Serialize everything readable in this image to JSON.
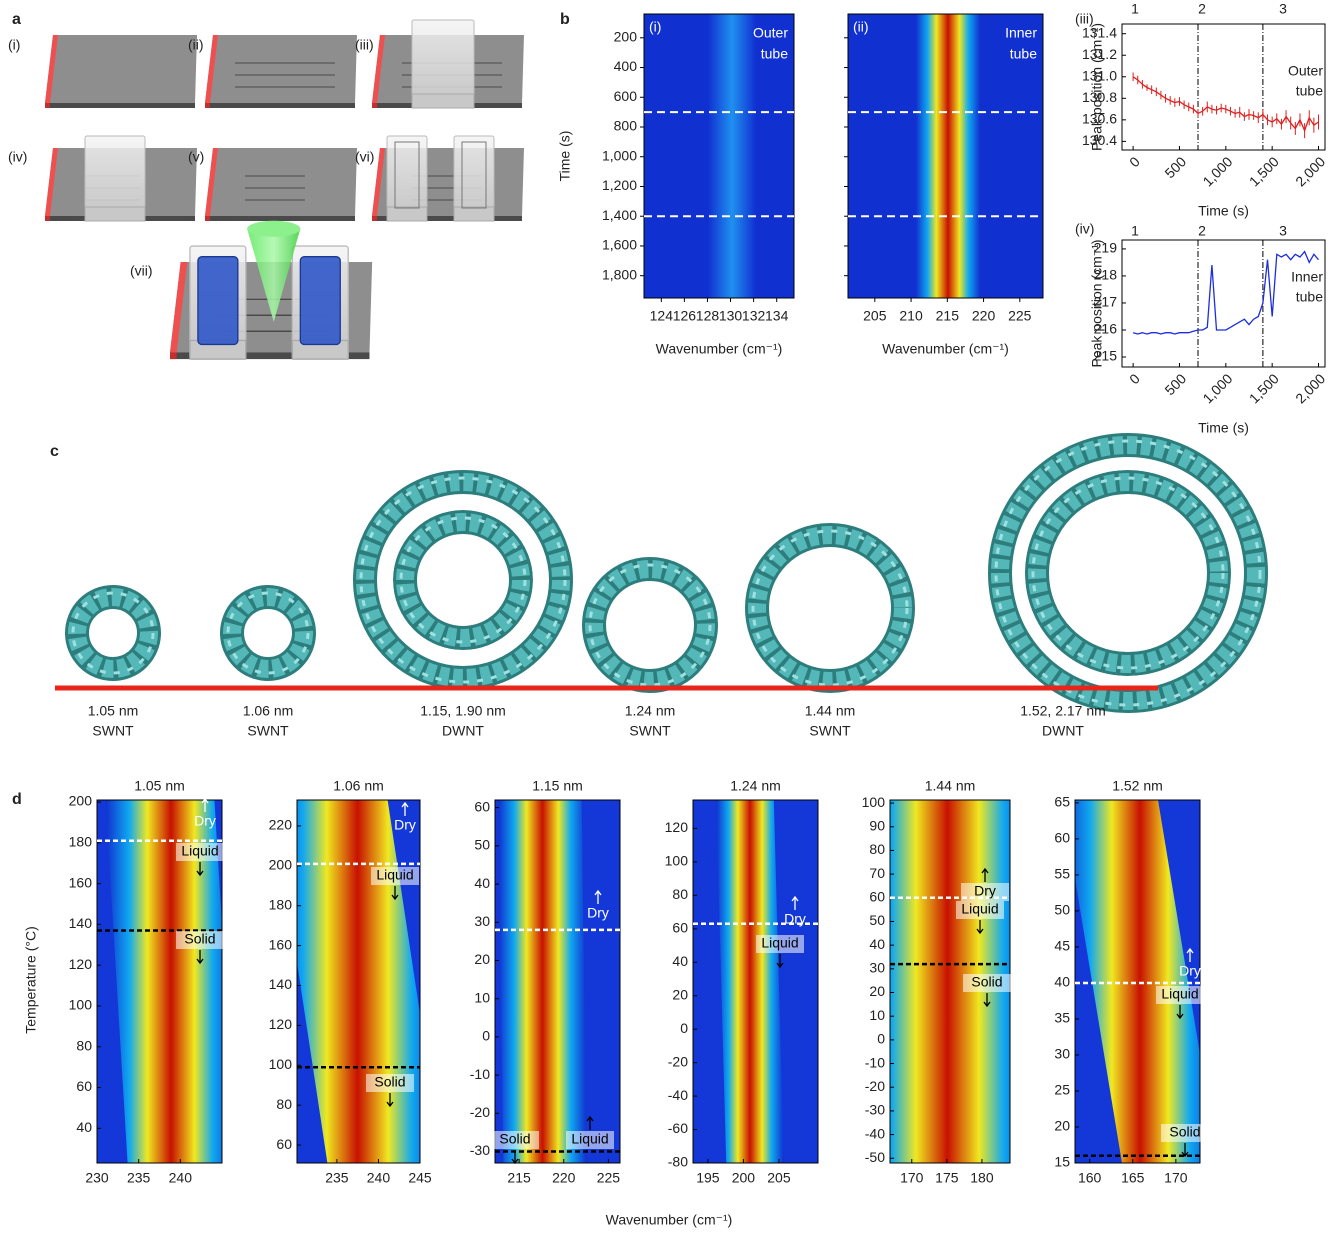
{
  "panel_labels": [
    "a",
    "b",
    "c",
    "d"
  ],
  "panel_a": {
    "steps": [
      "(i)",
      "(ii)",
      "(iii)",
      "(iv)",
      "(v)",
      "(vi)",
      "(vii)"
    ]
  },
  "panel_b": {
    "ylabel": "Time (s)",
    "ylim": [
      40,
      1950
    ],
    "y_inverted": true,
    "yticks": [
      200,
      400,
      600,
      800,
      {
        "value": 1000,
        "label": "1,000"
      },
      {
        "value": 1200,
        "label": "1,200"
      },
      {
        "value": 1400,
        "label": "1,400"
      },
      {
        "value": 1600,
        "label": "1,600"
      },
      {
        "value": 1800,
        "label": "1,800"
      }
    ],
    "transitions": [
      700,
      1400
    ],
    "maps": [
      {
        "label": "(i)",
        "annotation": [
          "Outer",
          "tube"
        ],
        "xlabel": "Wavenumber (cm⁻¹)",
        "xlim": [
          122.5,
          135.5
        ],
        "xticks": [
          124,
          126,
          128,
          130,
          132,
          134
        ]
      },
      {
        "label": "(ii)",
        "annotation": [
          "Inner",
          "tube"
        ],
        "xlabel": "Wavenumber (cm⁻¹)",
        "xlim": [
          201.3,
          228.2
        ],
        "xticks": [
          205,
          210,
          215,
          220,
          225
        ]
      }
    ],
    "lines": [
      {
        "type": "line",
        "label": "(iii)",
        "annotation": [
          "Outer",
          "tube"
        ],
        "color": "#e0201c",
        "xlabel": "Time (s)",
        "ylabel": "Peak position (cm⁻¹)",
        "xlim": [
          -120,
          2070
        ],
        "xticks": [
          0,
          500,
          {
            "value": 1000,
            "label": "1,000"
          },
          {
            "value": 1500,
            "label": "1,500"
          },
          {
            "value": 2000,
            "label": "2,000"
          }
        ],
        "ylim": [
          130.32,
          131.49
        ],
        "yticks": [
          130.4,
          130.6,
          130.8,
          {
            "value": 131,
            "label": "131.0"
          },
          131.2,
          131.4
        ],
        "transitions": [
          700,
          1400
        ],
        "phase_labels": [
          "1",
          "2",
          "3"
        ],
        "x": [
          0,
          50,
          100,
          150,
          200,
          250,
          300,
          350,
          400,
          450,
          500,
          550,
          600,
          650,
          700,
          750,
          800,
          850,
          900,
          950,
          1000,
          1050,
          1100,
          1150,
          1200,
          1250,
          1300,
          1350,
          1400,
          1450,
          1500,
          1550,
          1600,
          1650,
          1700,
          1750,
          1800,
          1850,
          1900,
          1950,
          2000
        ],
        "values": [
          131.0,
          130.97,
          130.93,
          130.9,
          130.88,
          130.86,
          130.83,
          130.8,
          130.78,
          130.76,
          130.77,
          130.74,
          130.72,
          130.7,
          130.66,
          130.68,
          130.72,
          130.7,
          130.69,
          130.71,
          130.7,
          130.68,
          130.66,
          130.67,
          130.63,
          130.65,
          130.64,
          130.62,
          130.65,
          130.6,
          130.58,
          130.61,
          130.56,
          130.63,
          130.57,
          130.52,
          130.6,
          130.5,
          130.62,
          130.55,
          130.58
        ],
        "errors": [
          0.04,
          0.04,
          0.04,
          0.03,
          0.04,
          0.04,
          0.04,
          0.04,
          0.04,
          0.04,
          0.04,
          0.04,
          0.04,
          0.04,
          0.04,
          0.04,
          0.05,
          0.04,
          0.04,
          0.04,
          0.04,
          0.04,
          0.04,
          0.05,
          0.04,
          0.05,
          0.04,
          0.05,
          0.05,
          0.05,
          0.05,
          0.05,
          0.05,
          0.06,
          0.06,
          0.06,
          0.06,
          0.07,
          0.07,
          0.07,
          0.07
        ]
      },
      {
        "type": "line",
        "label": "(iv)",
        "annotation": [
          "Inner",
          "tube"
        ],
        "color": "#1c2ee0",
        "xlabel": "Time (s)",
        "ylabel": "Peak position (cm⁻¹)",
        "xlim": [
          -120,
          2070
        ],
        "xticks": [
          0,
          500,
          {
            "value": 1000,
            "label": "1,000"
          },
          {
            "value": 1500,
            "label": "1,500"
          },
          {
            "value": 2000,
            "label": "2,000"
          }
        ],
        "ylim": [
          214.63,
          219.33
        ],
        "yticks": [
          215,
          216,
          217,
          218,
          219
        ],
        "transitions": [
          700,
          1400
        ],
        "phase_labels": [
          "1",
          "2",
          "3"
        ],
        "x": [
          0,
          50,
          100,
          150,
          200,
          250,
          300,
          350,
          400,
          450,
          500,
          550,
          600,
          650,
          700,
          750,
          800,
          850,
          900,
          950,
          1000,
          1050,
          1100,
          1150,
          1200,
          1250,
          1300,
          1350,
          1400,
          1450,
          1500,
          1550,
          1600,
          1650,
          1700,
          1750,
          1800,
          1850,
          1900,
          1950,
          2000
        ],
        "values": [
          215.9,
          215.85,
          215.9,
          215.85,
          215.9,
          215.9,
          215.85,
          215.9,
          215.9,
          215.85,
          215.9,
          215.9,
          215.9,
          215.95,
          216.0,
          216.0,
          216.1,
          218.4,
          216.0,
          216.0,
          216.0,
          216.1,
          216.2,
          216.3,
          216.4,
          216.2,
          216.4,
          216.5,
          217.0,
          218.6,
          216.5,
          218.8,
          218.7,
          218.8,
          218.6,
          218.8,
          218.7,
          218.9,
          218.5,
          218.8,
          218.6
        ]
      }
    ]
  },
  "panel_c": {
    "tubes": [
      {
        "diameter": "1.05 nm",
        "kind": "SWNT"
      },
      {
        "diameter": "1.06 nm",
        "kind": "SWNT"
      },
      {
        "diameter": "1.15, 1.90 nm",
        "kind": "DWNT"
      },
      {
        "diameter": "1.24 nm",
        "kind": "SWNT"
      },
      {
        "diameter": "1.44 nm",
        "kind": "SWNT"
      },
      {
        "diameter": "1.52, 2.17 nm",
        "kind": "DWNT"
      }
    ]
  },
  "panel_d": {
    "ylabel": "Temperature (°C)",
    "xlabel": "Wavenumber (cm⁻¹)",
    "maps": [
      {
        "title": "1.05 nm",
        "ylim": [
          23,
          201
        ],
        "yticks": [
          40,
          60,
          80,
          100,
          120,
          140,
          160,
          180,
          200
        ],
        "xlim": [
          230,
          245
        ],
        "xticks": [
          230,
          235,
          240
        ],
        "transitions": [
          {
            "value": 181,
            "color": "#ffffff"
          },
          {
            "value": 137,
            "color": "#000000"
          }
        ],
        "annotations": [
          "Dry",
          "Liquid",
          "Solid"
        ]
      },
      {
        "title": "1.06 nm",
        "ylim": [
          51,
          233
        ],
        "yticks": [
          60,
          80,
          100,
          120,
          140,
          160,
          180,
          200,
          220
        ],
        "xlim": [
          230.2,
          245
        ],
        "xticks": [
          235,
          240,
          245
        ],
        "transitions": [
          {
            "value": 201,
            "color": "#ffffff"
          },
          {
            "value": 99,
            "color": "#000000"
          }
        ],
        "annotations": [
          "Dry",
          "Liquid",
          "Solid"
        ]
      },
      {
        "title": "1.15 nm",
        "ylim": [
          -33,
          62
        ],
        "yticks": [
          -30,
          -20,
          -10,
          0,
          10,
          20,
          30,
          40,
          50,
          60
        ],
        "xlim": [
          212.3,
          226.3
        ],
        "xticks": [
          215,
          220,
          225
        ],
        "transitions": [
          {
            "value": 28,
            "color": "#ffffff"
          },
          {
            "value": -30,
            "color": "#000000"
          }
        ],
        "annotations": [
          "Dry",
          "Solid",
          "Liquid"
        ]
      },
      {
        "title": "1.24 nm",
        "ylim": [
          -80,
          137
        ],
        "yticks": [
          -80,
          -60,
          -40,
          -20,
          0,
          20,
          40,
          60,
          80,
          100,
          120
        ],
        "xlim": [
          192.9,
          210.5
        ],
        "xticks": [
          195,
          200,
          205
        ],
        "transitions": [
          {
            "value": 63,
            "color": "#ffffff"
          }
        ],
        "annotations": [
          "Dry",
          "Liquid"
        ]
      },
      {
        "title": "1.44 nm",
        "ylim": [
          -52,
          101.3
        ],
        "yticks": [
          -50,
          -40,
          -30,
          -20,
          -10,
          0,
          10,
          20,
          30,
          40,
          50,
          60,
          70,
          80,
          90,
          100
        ],
        "xlim": [
          166.9,
          184
        ],
        "xticks": [
          170,
          175,
          180
        ],
        "transitions": [
          {
            "value": 60,
            "color": "#ffffff"
          },
          {
            "value": 32,
            "color": "#000000"
          }
        ],
        "annotations": [
          "Dry",
          "Liquid",
          "Solid"
        ]
      },
      {
        "title": "1.52 nm",
        "ylim": [
          15,
          65.4
        ],
        "yticks": [
          15,
          20,
          25,
          30,
          35,
          40,
          45,
          50,
          55,
          60,
          65
        ],
        "xlim": [
          158.3,
          172.8
        ],
        "xticks": [
          160,
          165,
          170
        ],
        "transitions": [
          {
            "value": 40,
            "color": "#ffffff"
          },
          {
            "value": 16,
            "color": "#000000"
          }
        ],
        "annotations": [
          "Dry",
          "Liquid",
          "Solid"
        ]
      }
    ]
  }
}
